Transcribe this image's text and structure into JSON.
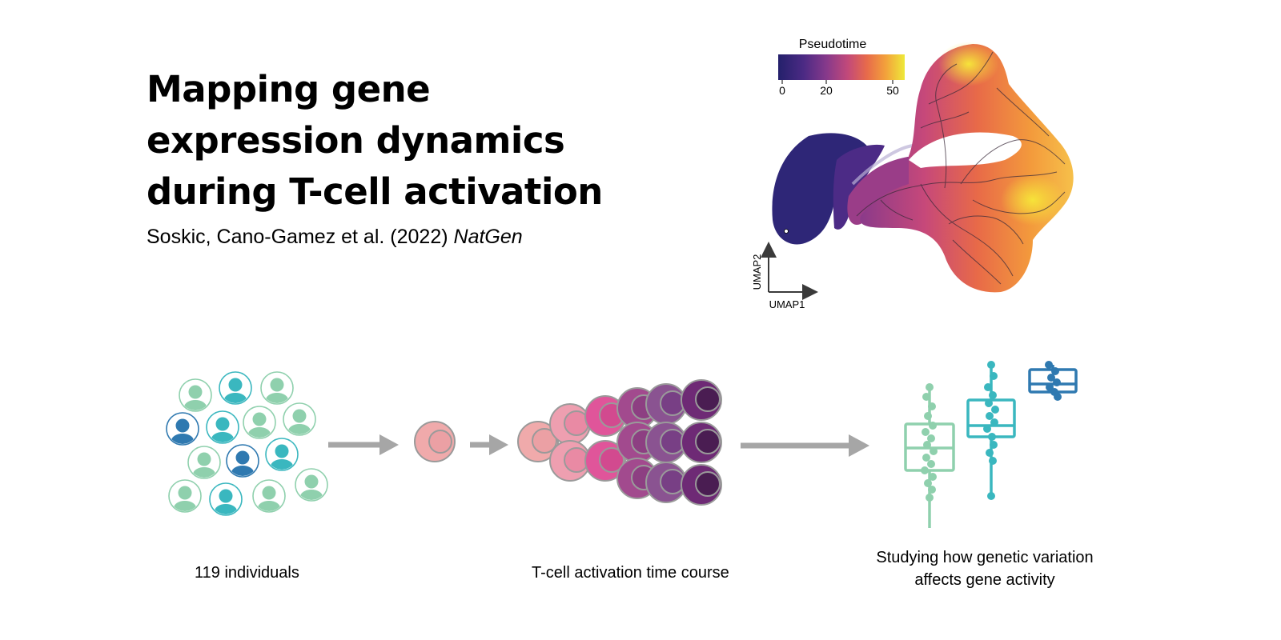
{
  "title": {
    "line1": "Mapping gene",
    "line2": "expression dynamics",
    "line3": "during T-cell activation"
  },
  "citation": {
    "authors": "Soskic, Cano-Gamez et al. (2022)",
    "journal": "NatGen"
  },
  "umap": {
    "legend_title": "Pseudotime",
    "tick_labels": [
      "0",
      "20",
      "50"
    ],
    "x_axis_label": "UMAP1",
    "y_axis_label": "UMAP2",
    "colormap": [
      "#2a1e6e",
      "#5b2a86",
      "#8a3a8a",
      "#c04a78",
      "#e66a4a",
      "#f39a3c",
      "#f6c343",
      "#f2e03a"
    ]
  },
  "captions": {
    "individuals": "119 individuals",
    "time_course": "T-cell activation time course",
    "study_line1": "Studying how genetic variation",
    "study_line2": "affects gene activity"
  },
  "colors": {
    "light_green": "#8fd0ad",
    "teal": "#3ab7bf",
    "blue": "#2f79b0",
    "arrow_gray": "#a6a6a6"
  }
}
